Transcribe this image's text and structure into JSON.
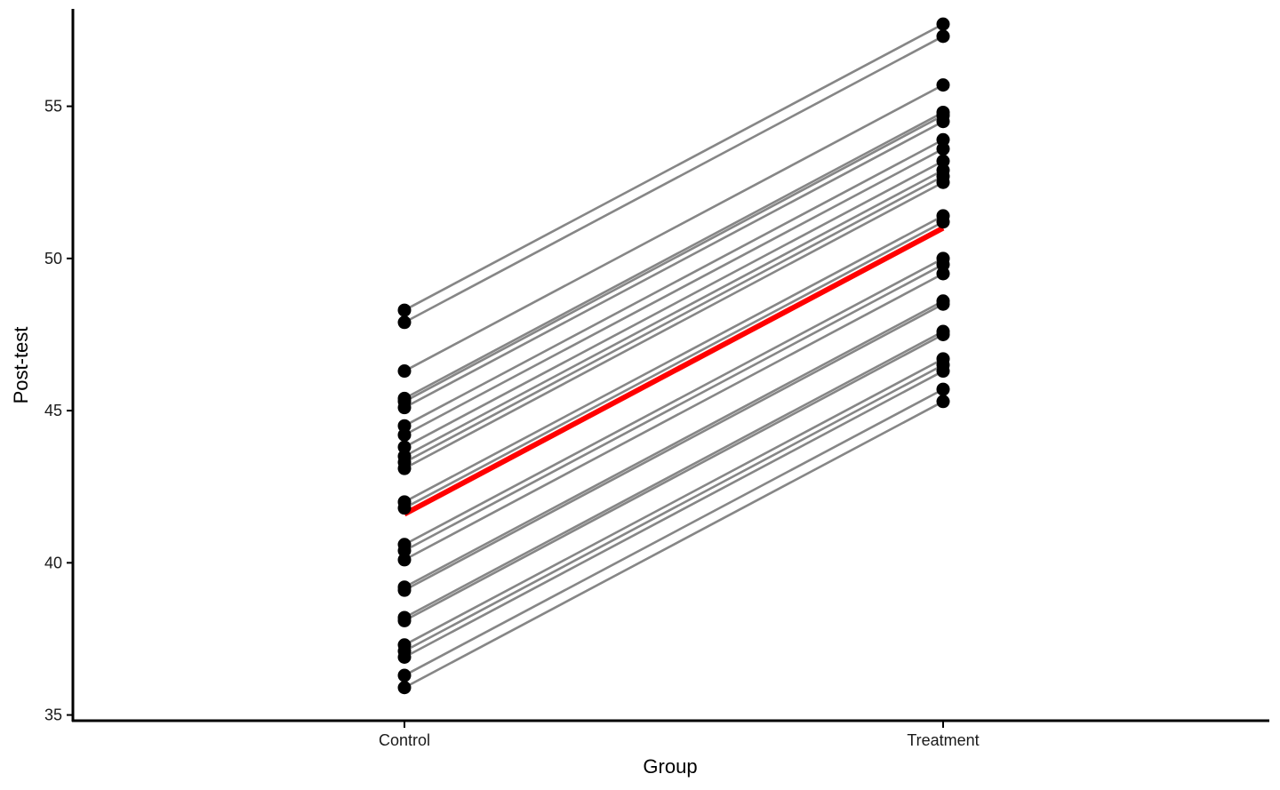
{
  "chart_data": {
    "type": "line",
    "title": "",
    "xlabel": "Group",
    "ylabel": "Post-test",
    "categories": [
      "Control",
      "Treatment"
    ],
    "ylim": [
      34.9,
      58.2
    ],
    "yticks": [
      35,
      40,
      45,
      50,
      55
    ],
    "grid": false,
    "legend": "none",
    "pairs": [
      [
        48.3,
        57.7
      ],
      [
        47.9,
        57.3
      ],
      [
        46.3,
        55.7
      ],
      [
        45.4,
        54.8
      ],
      [
        45.3,
        54.7
      ],
      [
        45.1,
        54.5
      ],
      [
        44.5,
        53.9
      ],
      [
        44.2,
        53.6
      ],
      [
        43.8,
        53.2
      ],
      [
        43.5,
        52.9
      ],
      [
        43.3,
        52.7
      ],
      [
        43.1,
        52.5
      ],
      [
        42.0,
        51.4
      ],
      [
        41.8,
        51.2
      ],
      [
        40.6,
        50.0
      ],
      [
        40.4,
        49.8
      ],
      [
        40.1,
        49.5
      ],
      [
        39.2,
        48.6
      ],
      [
        39.1,
        48.5
      ],
      [
        38.2,
        47.6
      ],
      [
        38.1,
        47.5
      ],
      [
        37.3,
        46.7
      ],
      [
        37.1,
        46.5
      ],
      [
        36.9,
        46.3
      ],
      [
        36.3,
        45.7
      ],
      [
        35.9,
        45.3
      ]
    ],
    "mean_line": [
      41.6,
      51.0
    ],
    "colors": {
      "subject_line": "#7f7f7f",
      "point": "#000000",
      "mean_line": "#ff0000",
      "axis": "#000000"
    }
  }
}
